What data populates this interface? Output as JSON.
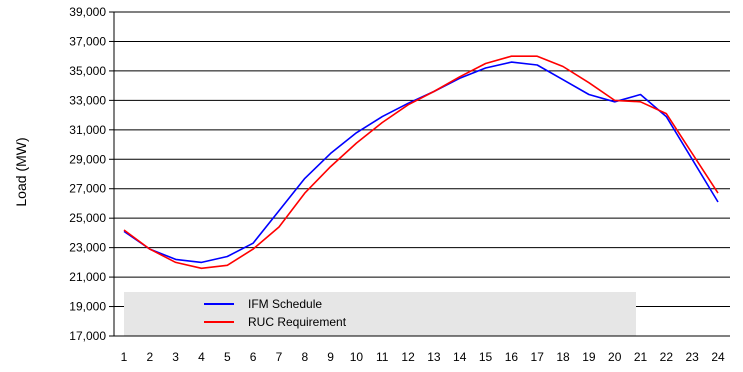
{
  "chart_data": {
    "type": "line",
    "ylabel": "Load (MW)",
    "xlabel": "",
    "x": [
      1,
      2,
      3,
      4,
      5,
      6,
      7,
      8,
      9,
      10,
      11,
      12,
      13,
      14,
      15,
      16,
      17,
      18,
      19,
      20,
      21,
      22,
      23,
      24
    ],
    "ylim": [
      17000,
      39000
    ],
    "yticks": [
      17000,
      19000,
      21000,
      23000,
      25000,
      27000,
      29000,
      31000,
      33000,
      35000,
      37000,
      39000
    ],
    "ytick_labels": [
      "17,000",
      "19,000",
      "21,000",
      "23,000",
      "25,000",
      "27,000",
      "29,000",
      "31,000",
      "33,000",
      "35,000",
      "37,000",
      "39,000"
    ],
    "xtick_labels": [
      "1",
      "2",
      "3",
      "4",
      "5",
      "6",
      "7",
      "8",
      "9",
      "10",
      "11",
      "12",
      "13",
      "14",
      "15",
      "16",
      "17",
      "18",
      "19",
      "20",
      "21",
      "22",
      "23",
      "24"
    ],
    "grid": "horizontal",
    "legend_position": "bottom-left inside",
    "legend_box_color": "#e6e6e6",
    "series": [
      {
        "name": "IFM Schedule",
        "color": "#0000ff",
        "values": [
          24100,
          22900,
          22200,
          22000,
          22400,
          23300,
          25500,
          27700,
          29400,
          30800,
          31900,
          32800,
          33600,
          34500,
          35200,
          35600,
          35400,
          34400,
          33400,
          32900,
          33400,
          31900,
          29000,
          26100
        ]
      },
      {
        "name": "RUC Requirement",
        "color": "#ff0000",
        "values": [
          24200,
          22900,
          22000,
          21600,
          21800,
          22900,
          24400,
          26700,
          28500,
          30100,
          31500,
          32700,
          33600,
          34600,
          35500,
          36000,
          36000,
          35300,
          34200,
          33000,
          32900,
          32100,
          29400,
          26700
        ]
      }
    ]
  }
}
